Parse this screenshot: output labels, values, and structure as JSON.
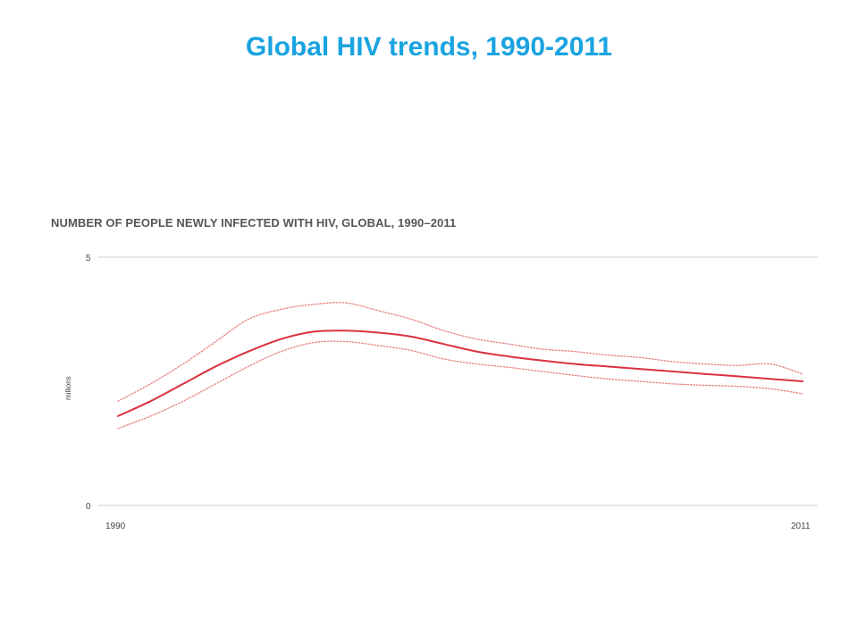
{
  "slide": {
    "title": "Global HIV trends, 1990-2011"
  },
  "chart_data": {
    "type": "line",
    "title": "NUMBER OF PEOPLE NEWLY INFECTED WITH HIV, GLOBAL, 1990–2011",
    "xlabel": "",
    "ylabel": "millions",
    "xlim": [
      1990,
      2011
    ],
    "ylim": [
      0,
      5
    ],
    "x_tick_labels": [
      "1990",
      "2011"
    ],
    "y_tick_labels": [
      "0",
      "5"
    ],
    "grid": false,
    "legend": "none",
    "colors": {
      "estimate": "#d9323e",
      "bounds": "#e88080",
      "axis": "#cccccc"
    },
    "series": [
      {
        "role": "estimate",
        "x": [
          1990,
          1991,
          1992,
          1993,
          1994,
          1995,
          1996,
          1997,
          1998,
          1999,
          2000,
          2001,
          2002,
          2003,
          2004,
          2005,
          2006,
          2007,
          2008,
          2009,
          2010,
          2011
        ],
        "values": [
          1.8,
          2.1,
          2.45,
          2.8,
          3.1,
          3.35,
          3.5,
          3.52,
          3.48,
          3.4,
          3.25,
          3.1,
          3.0,
          2.92,
          2.85,
          2.8,
          2.75,
          2.7,
          2.65,
          2.6,
          2.55,
          2.5
        ]
      },
      {
        "role": "upper",
        "x": [
          1990,
          1991,
          1992,
          1993,
          1994,
          1995,
          1996,
          1997,
          1998,
          1999,
          2000,
          2001,
          2002,
          2003,
          2004,
          2005,
          2006,
          2007,
          2008,
          2009,
          2010,
          2011
        ],
        "values": [
          2.1,
          2.45,
          2.85,
          3.3,
          3.75,
          3.95,
          4.05,
          4.08,
          3.92,
          3.75,
          3.52,
          3.35,
          3.25,
          3.15,
          3.1,
          3.03,
          2.98,
          2.9,
          2.85,
          2.82,
          2.85,
          2.65
        ]
      },
      {
        "role": "lower",
        "x": [
          1990,
          1991,
          1992,
          1993,
          1994,
          1995,
          1996,
          1997,
          1998,
          1999,
          2000,
          2001,
          2002,
          2003,
          2004,
          2005,
          2006,
          2007,
          2008,
          2009,
          2010,
          2011
        ],
        "values": [
          1.55,
          1.8,
          2.1,
          2.45,
          2.8,
          3.1,
          3.28,
          3.3,
          3.22,
          3.12,
          2.95,
          2.85,
          2.78,
          2.7,
          2.62,
          2.55,
          2.5,
          2.45,
          2.42,
          2.4,
          2.35,
          2.25
        ]
      }
    ]
  }
}
